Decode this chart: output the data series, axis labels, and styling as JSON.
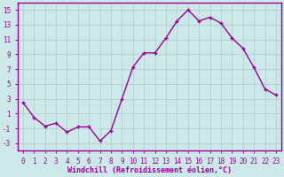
{
  "x": [
    0,
    1,
    2,
    3,
    4,
    5,
    6,
    7,
    8,
    9,
    10,
    11,
    12,
    13,
    14,
    15,
    16,
    17,
    18,
    19,
    20,
    21,
    22,
    23
  ],
  "y": [
    2.5,
    0.5,
    -0.7,
    -0.3,
    -1.5,
    -0.8,
    -0.8,
    -2.7,
    -1.3,
    3.0,
    7.3,
    9.2,
    9.2,
    11.2,
    13.5,
    15.0,
    13.5,
    14.0,
    13.2,
    11.2,
    9.8,
    7.2,
    4.3,
    3.5
  ],
  "line_color": "#990099",
  "marker": "+",
  "marker_size": 3,
  "bg_color": "#cce8e8",
  "grid_color": "#aacccc",
  "xlabel": "Windchill (Refroidissement éolien,°C)",
  "xlabel_color": "#990099",
  "ylabel_ticks": [
    -3,
    -1,
    1,
    3,
    5,
    7,
    9,
    11,
    13,
    15
  ],
  "ylim": [
    -4,
    16
  ],
  "xlim": [
    -0.5,
    23.5
  ],
  "xticks": [
    0,
    1,
    2,
    3,
    4,
    5,
    6,
    7,
    8,
    9,
    10,
    11,
    12,
    13,
    14,
    15,
    16,
    17,
    18,
    19,
    20,
    21,
    22,
    23
  ],
  "tick_color": "#990099",
  "spine_color": "#990099",
  "xlabel_fontsize": 6,
  "xlabel_fontweight": "bold",
  "tick_fontsize": 5.5,
  "linewidth": 1.0
}
